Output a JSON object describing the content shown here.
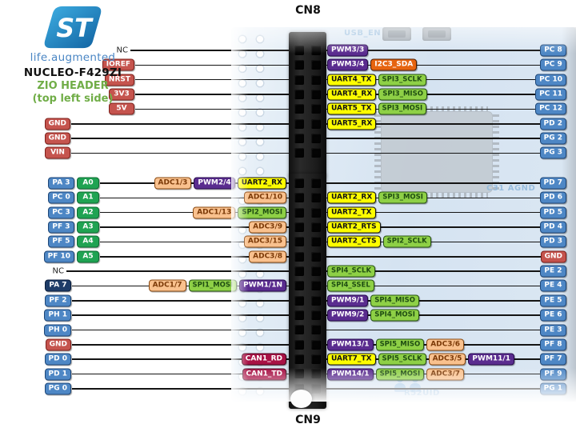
{
  "header": {
    "brand": "life.augmented",
    "board": "NUCLEO-F429ZI",
    "subtitle1": "ZIO HEADER",
    "subtitle2": "(top left side)",
    "logo_text": "ST"
  },
  "connectors": {
    "top_label": "CN8",
    "bottom_label": "CN9"
  },
  "silkscreen": {
    "usb_en": "USB_EN",
    "cn8": "CN8",
    "cn9": "CN9",
    "c31_agnd": "C31  AGND",
    "uid": "R52UID"
  },
  "colors": {
    "pin": "#4e87c5",
    "pin_border": "#1d4677",
    "pin_dark": "#1e3c68",
    "pin_dark_border": "#0b1e3c",
    "power": "#c5544e",
    "power_border": "#7e201b",
    "analog": "#1fa352",
    "analog_border": "#0c6b31",
    "adc": "#f9c18e",
    "adc_border": "#8a4a12",
    "adc_text": "#7c3a08",
    "pwm": "#5a2c8f",
    "pwm_border": "#260a4d",
    "uart": "#fdfd00",
    "uart_border": "#141414",
    "uart_text": "#141414",
    "spi": "#8ed046",
    "spi_border": "#275313",
    "spi_text": "#1f4d12",
    "i2c": "#e66410",
    "i2c_border": "#4d1c00",
    "can": "#a81245",
    "can_border": "#47031c",
    "wire": "#141414",
    "title_green": "#70ad47",
    "brand_blue": "#4a86c4",
    "silk": "#8fb8dc"
  },
  "cn8_rows": [
    {
      "left": [
        {
          "t": "NC",
          "k": "nc"
        }
      ],
      "lf": [],
      "rf": [
        {
          "t": "PWM3/3",
          "k": "pwm"
        }
      ],
      "right": {
        "t": "PC 8",
        "k": "pin"
      }
    },
    {
      "left": [
        {
          "t": "IOREF",
          "k": "power"
        }
      ],
      "lf": [],
      "rf": [
        {
          "t": "PWM3/4",
          "k": "pwm"
        },
        {
          "t": "I2C3_SDA",
          "k": "i2c"
        }
      ],
      "right": {
        "t": "PC 9",
        "k": "pin"
      }
    },
    {
      "left": [
        {
          "t": "NRST",
          "k": "power"
        }
      ],
      "lf": [],
      "rf": [
        {
          "t": "UART4_TX",
          "k": "uart"
        },
        {
          "t": "SPI3_SCLK",
          "k": "spi"
        }
      ],
      "right": {
        "t": "PC 10",
        "k": "pin"
      }
    },
    {
      "left": [
        {
          "t": "3V3",
          "k": "power"
        }
      ],
      "lf": [],
      "rf": [
        {
          "t": "UART4_RX",
          "k": "uart"
        },
        {
          "t": "SPI3_MISO",
          "k": "spi"
        }
      ],
      "right": {
        "t": "PC 11",
        "k": "pin"
      }
    },
    {
      "left": [
        {
          "t": "5V",
          "k": "power"
        }
      ],
      "lf": [],
      "rf": [
        {
          "t": "UART5_TX",
          "k": "uart"
        },
        {
          "t": "SPI3_MOSI",
          "k": "spi"
        }
      ],
      "right": {
        "t": "PC 12",
        "k": "pin"
      }
    },
    {
      "left": [
        {
          "t": "GND",
          "k": "power"
        }
      ],
      "lf": [],
      "rf": [
        {
          "t": "UART5_RX",
          "k": "uart"
        }
      ],
      "right": {
        "t": "PD 2",
        "k": "pin"
      }
    },
    {
      "left": [
        {
          "t": "GND",
          "k": "power"
        }
      ],
      "lf": [],
      "rf": [],
      "right": {
        "t": "PG 2",
        "k": "pin"
      }
    },
    {
      "left": [
        {
          "t": "VIN",
          "k": "power"
        }
      ],
      "lf": [],
      "rf": [],
      "right": {
        "t": "PG 3",
        "k": "pin"
      }
    }
  ],
  "cn9_rows": [
    {
      "left": [
        {
          "t": "PA 3",
          "k": "pin"
        },
        {
          "t": "A0",
          "k": "analog"
        }
      ],
      "lf": [
        {
          "t": "ADC1/3",
          "k": "adc"
        },
        {
          "t": "PWM2/4",
          "k": "pwm"
        },
        {
          "t": "UART2_RX",
          "k": "uart"
        }
      ],
      "rf": [],
      "right": {
        "t": "PD 7",
        "k": "pin"
      }
    },
    {
      "left": [
        {
          "t": "PC 0",
          "k": "pin"
        },
        {
          "t": "A1",
          "k": "analog"
        }
      ],
      "lf": [
        {
          "t": "ADC1/10",
          "k": "adc"
        }
      ],
      "rf": [
        {
          "t": "UART2_RX",
          "k": "uart"
        },
        {
          "t": "SPI3_MOSI",
          "k": "spi"
        }
      ],
      "right": {
        "t": "PD 6",
        "k": "pin"
      }
    },
    {
      "left": [
        {
          "t": "PC 3",
          "k": "pin"
        },
        {
          "t": "A2",
          "k": "analog"
        }
      ],
      "lf": [
        {
          "t": "ADC1/13",
          "k": "adc"
        },
        {
          "t": "SPI2_MOSI",
          "k": "spi"
        }
      ],
      "rf": [
        {
          "t": "UART2_TX",
          "k": "uart"
        }
      ],
      "right": {
        "t": "PD 5",
        "k": "pin"
      }
    },
    {
      "left": [
        {
          "t": "PF 3",
          "k": "pin"
        },
        {
          "t": "A3",
          "k": "analog"
        }
      ],
      "lf": [
        {
          "t": "ADC3/9",
          "k": "adc"
        }
      ],
      "rf": [
        {
          "t": "UART2_RTS",
          "k": "uart"
        }
      ],
      "right": {
        "t": "PD 4",
        "k": "pin"
      }
    },
    {
      "left": [
        {
          "t": "PF 5",
          "k": "pin"
        },
        {
          "t": "A4",
          "k": "analog"
        }
      ],
      "lf": [
        {
          "t": "ADC3/15",
          "k": "adc"
        }
      ],
      "rf": [
        {
          "t": "UART2_CTS",
          "k": "uart"
        },
        {
          "t": "SPI2_SCLK",
          "k": "spi"
        }
      ],
      "right": {
        "t": "PD 3",
        "k": "pin"
      }
    },
    {
      "left": [
        {
          "t": "PF 10",
          "k": "pin"
        },
        {
          "t": "A5",
          "k": "analog"
        }
      ],
      "lf": [
        {
          "t": "ADC3/8",
          "k": "adc"
        }
      ],
      "rf": [],
      "right": {
        "t": "GND",
        "k": "power"
      }
    },
    {
      "left": [
        {
          "t": "NC",
          "k": "nc"
        }
      ],
      "lf": [],
      "rf": [
        {
          "t": "SPI4_SCLK",
          "k": "spi"
        }
      ],
      "right": {
        "t": "PE 2",
        "k": "pin"
      }
    },
    {
      "left": [
        {
          "t": "PA 7",
          "k": "pindark"
        }
      ],
      "lf": [
        {
          "t": "ADC1/7",
          "k": "adc"
        },
        {
          "t": "SPI1_MOSI",
          "k": "spi"
        },
        {
          "t": "PWM1/1N",
          "k": "pwm"
        }
      ],
      "rf": [
        {
          "t": "SPI4_SSEL",
          "k": "spi"
        }
      ],
      "right": {
        "t": "PE 4",
        "k": "pin"
      }
    },
    {
      "left": [
        {
          "t": "PF 2",
          "k": "pin"
        }
      ],
      "lf": [],
      "rf": [
        {
          "t": "PWM9/1",
          "k": "pwm"
        },
        {
          "t": "SPI4_MISO",
          "k": "spi"
        }
      ],
      "right": {
        "t": "PE 5",
        "k": "pin"
      }
    },
    {
      "left": [
        {
          "t": "PH 1",
          "k": "pin"
        }
      ],
      "lf": [],
      "rf": [
        {
          "t": "PWM9/2",
          "k": "pwm"
        },
        {
          "t": "SPI4_MOSI",
          "k": "spi"
        }
      ],
      "right": {
        "t": "PE 6",
        "k": "pin"
      }
    },
    {
      "left": [
        {
          "t": "PH 0",
          "k": "pin"
        }
      ],
      "lf": [],
      "rf": [],
      "right": {
        "t": "PE 3",
        "k": "pin"
      }
    },
    {
      "left": [
        {
          "t": "GND",
          "k": "power"
        }
      ],
      "lf": [],
      "rf": [
        {
          "t": "PWM13/1",
          "k": "pwm"
        },
        {
          "t": "SPI5_MISO",
          "k": "spi"
        },
        {
          "t": "ADC3/6",
          "k": "adc"
        }
      ],
      "right": {
        "t": "PF 8",
        "k": "pin"
      }
    },
    {
      "left": [
        {
          "t": "PD 0",
          "k": "pin"
        }
      ],
      "lf": [
        {
          "t": "CAN1_RD",
          "k": "can"
        }
      ],
      "rf": [
        {
          "t": "UART7_TX",
          "k": "uart"
        },
        {
          "t": "SPI5_SCLK",
          "k": "spi"
        },
        {
          "t": "ADC3/5",
          "k": "adc"
        },
        {
          "t": "PWM11/1",
          "k": "pwm"
        }
      ],
      "right": {
        "t": "PF 7",
        "k": "pin"
      }
    },
    {
      "left": [
        {
          "t": "PD 1",
          "k": "pin"
        }
      ],
      "lf": [
        {
          "t": "CAN1_TD",
          "k": "can"
        }
      ],
      "rf": [
        {
          "t": "PWM14/1",
          "k": "pwm"
        },
        {
          "t": "SPI5_MOSI",
          "k": "spi"
        },
        {
          "t": "ADC3/7",
          "k": "adc"
        }
      ],
      "right": {
        "t": "PF 9",
        "k": "pin"
      }
    },
    {
      "left": [
        {
          "t": "PG 0",
          "k": "pin"
        }
      ],
      "lf": [],
      "rf": [],
      "right": {
        "t": "PG 1",
        "k": "pin"
      }
    }
  ]
}
